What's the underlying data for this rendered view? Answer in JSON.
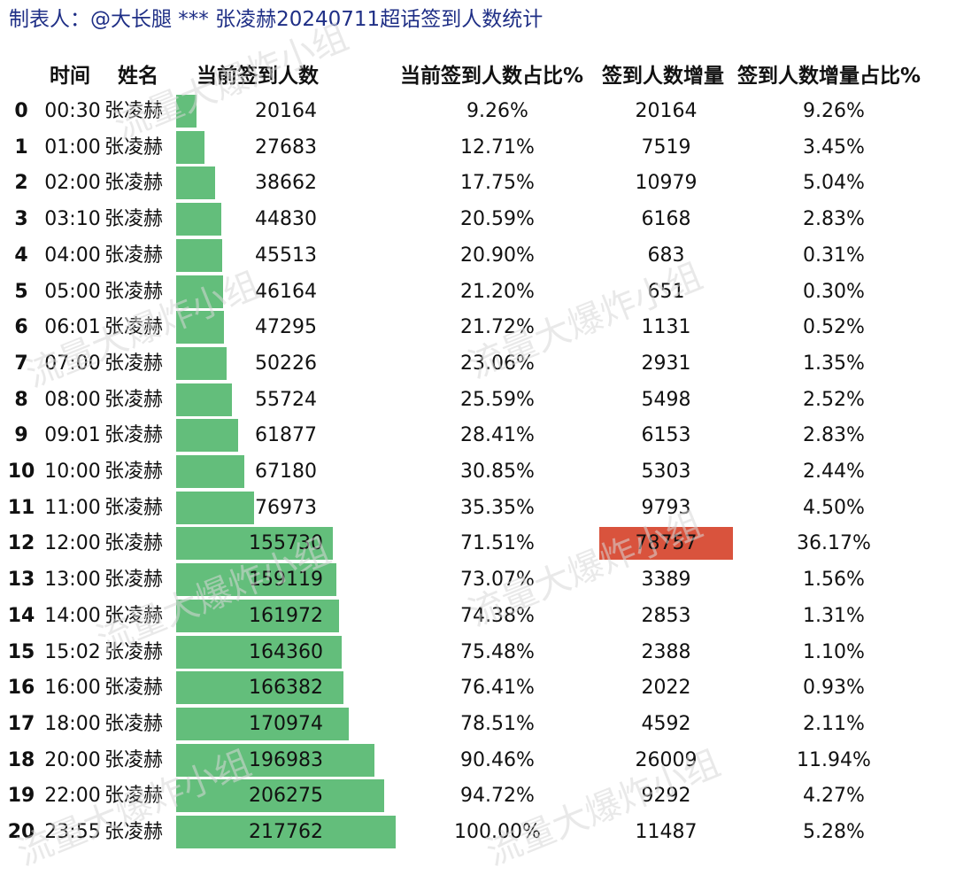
{
  "title": "制表人：@大长腿 *** 张凌赫20240711超话签到人数统计",
  "headers": [
    "时间",
    "姓名",
    "当前签到人数",
    "当前签到人数占比%",
    "签到人数增量",
    "签到人数增量占比%"
  ],
  "watermark": "流量大爆炸小组",
  "colors": {
    "bar": "#63be7b",
    "highlight": "#d9533d",
    "title": "#1f2f86"
  },
  "chart_data": {
    "type": "table",
    "columns": [
      "",
      "时间",
      "姓名",
      "当前签到人数",
      "当前签到人数占比%",
      "签到人数增量",
      "签到人数增量占比%"
    ],
    "max_current": 217762,
    "rows": [
      {
        "index": "0",
        "time": "00:30",
        "name": "张凌赫",
        "current": 20164,
        "current_pct": "9.26%",
        "increment": 20164,
        "increment_pct": "9.26%"
      },
      {
        "index": "1",
        "time": "01:00",
        "name": "张凌赫",
        "current": 27683,
        "current_pct": "12.71%",
        "increment": 7519,
        "increment_pct": "3.45%"
      },
      {
        "index": "2",
        "time": "02:00",
        "name": "张凌赫",
        "current": 38662,
        "current_pct": "17.75%",
        "increment": 10979,
        "increment_pct": "5.04%"
      },
      {
        "index": "3",
        "time": "03:10",
        "name": "张凌赫",
        "current": 44830,
        "current_pct": "20.59%",
        "increment": 6168,
        "increment_pct": "2.83%"
      },
      {
        "index": "4",
        "time": "04:00",
        "name": "张凌赫",
        "current": 45513,
        "current_pct": "20.90%",
        "increment": 683,
        "increment_pct": "0.31%"
      },
      {
        "index": "5",
        "time": "05:00",
        "name": "张凌赫",
        "current": 46164,
        "current_pct": "21.20%",
        "increment": 651,
        "increment_pct": "0.30%"
      },
      {
        "index": "6",
        "time": "06:01",
        "name": "张凌赫",
        "current": 47295,
        "current_pct": "21.72%",
        "increment": 1131,
        "increment_pct": "0.52%"
      },
      {
        "index": "7",
        "time": "07:00",
        "name": "张凌赫",
        "current": 50226,
        "current_pct": "23.06%",
        "increment": 2931,
        "increment_pct": "1.35%"
      },
      {
        "index": "8",
        "time": "08:00",
        "name": "张凌赫",
        "current": 55724,
        "current_pct": "25.59%",
        "increment": 5498,
        "increment_pct": "2.52%"
      },
      {
        "index": "9",
        "time": "09:01",
        "name": "张凌赫",
        "current": 61877,
        "current_pct": "28.41%",
        "increment": 6153,
        "increment_pct": "2.83%"
      },
      {
        "index": "10",
        "time": "10:00",
        "name": "张凌赫",
        "current": 67180,
        "current_pct": "30.85%",
        "increment": 5303,
        "increment_pct": "2.44%"
      },
      {
        "index": "11",
        "time": "11:00",
        "name": "张凌赫",
        "current": 76973,
        "current_pct": "35.35%",
        "increment": 9793,
        "increment_pct": "4.50%"
      },
      {
        "index": "12",
        "time": "12:00",
        "name": "张凌赫",
        "current": 155730,
        "current_pct": "71.51%",
        "increment": 78757,
        "increment_pct": "36.17%",
        "highlight": true
      },
      {
        "index": "13",
        "time": "13:00",
        "name": "张凌赫",
        "current": 159119,
        "current_pct": "73.07%",
        "increment": 3389,
        "increment_pct": "1.56%"
      },
      {
        "index": "14",
        "time": "14:00",
        "name": "张凌赫",
        "current": 161972,
        "current_pct": "74.38%",
        "increment": 2853,
        "increment_pct": "1.31%"
      },
      {
        "index": "15",
        "time": "15:02",
        "name": "张凌赫",
        "current": 164360,
        "current_pct": "75.48%",
        "increment": 2388,
        "increment_pct": "1.10%"
      },
      {
        "index": "16",
        "time": "16:00",
        "name": "张凌赫",
        "current": 166382,
        "current_pct": "76.41%",
        "increment": 2022,
        "increment_pct": "0.93%"
      },
      {
        "index": "17",
        "time": "18:00",
        "name": "张凌赫",
        "current": 170974,
        "current_pct": "78.51%",
        "increment": 4592,
        "increment_pct": "2.11%"
      },
      {
        "index": "18",
        "time": "20:00",
        "name": "张凌赫",
        "current": 196983,
        "current_pct": "90.46%",
        "increment": 26009,
        "increment_pct": "11.94%"
      },
      {
        "index": "19",
        "time": "22:00",
        "name": "张凌赫",
        "current": 206275,
        "current_pct": "94.72%",
        "increment": 9292,
        "increment_pct": "4.27%"
      },
      {
        "index": "20",
        "time": "23:55",
        "name": "张凌赫",
        "current": 217762,
        "current_pct": "100.00%",
        "increment": 11487,
        "increment_pct": "5.28%"
      }
    ]
  }
}
